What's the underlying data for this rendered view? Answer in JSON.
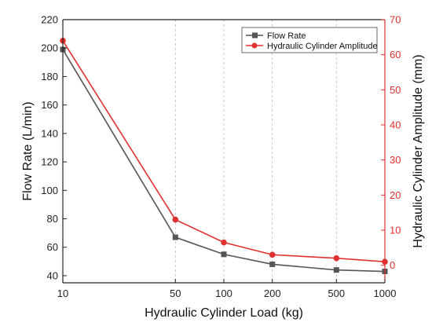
{
  "chart_data": {
    "type": "line",
    "xlabel": "Hydraulic Cylinder Load (kg)",
    "ylabel_left": "Flow Rate (L/min)",
    "ylabel_right": "Hydraulic Cylinder Amplitude (mm)",
    "x_scale": "log",
    "xlim": [
      10,
      1000
    ],
    "ylim_left": [
      35,
      220
    ],
    "ylim_right": [
      -5,
      70
    ],
    "x_ticks": [
      10,
      50,
      100,
      200,
      500,
      1000
    ],
    "x_tick_labels": [
      "10",
      "50",
      "100",
      "200",
      "500",
      "1000"
    ],
    "y_left_ticks": [
      40,
      60,
      80,
      100,
      120,
      140,
      160,
      180,
      200,
      220
    ],
    "y_left_tick_labels": [
      "40",
      "60",
      "80",
      "100",
      "120",
      "140",
      "160",
      "180",
      "200",
      "220"
    ],
    "y_right_ticks": [
      0,
      10,
      20,
      30,
      40,
      50,
      60,
      70
    ],
    "y_right_tick_labels": [
      "0",
      "10",
      "20",
      "30",
      "40",
      "50",
      "60",
      "70"
    ],
    "grid_vertical": true,
    "legend_position": "top-right",
    "series": [
      {
        "name": "Flow Rate",
        "axis": "left",
        "color": "#555555",
        "marker": "square",
        "x": [
          10,
          50,
          100,
          200,
          500,
          1000
        ],
        "values": [
          199,
          67,
          55,
          48,
          44,
          43
        ]
      },
      {
        "name": "Hydraulic Cylinder Amplitude",
        "axis": "right",
        "color": "#e03030",
        "marker": "circle",
        "x": [
          10,
          50,
          100,
          200,
          500,
          1000
        ],
        "values": [
          64,
          13,
          6.5,
          3,
          2,
          1
        ]
      }
    ]
  }
}
